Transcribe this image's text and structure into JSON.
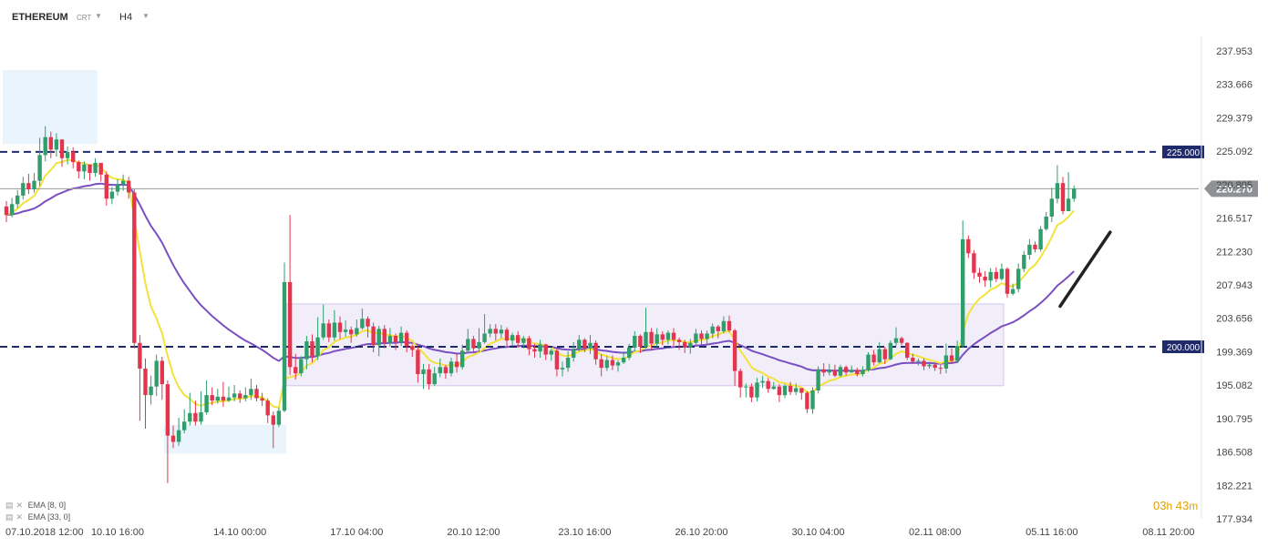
{
  "toolbar": {
    "symbol": "ETHEREUM",
    "instrument_type": "CRT",
    "timeframe": "H4"
  },
  "indicators": [
    {
      "label": "EMA",
      "params": "[8, 0]",
      "color": "#f2e23a"
    },
    {
      "label": "EMA",
      "params": "[33, 0]",
      "color": "#7a4fc2"
    }
  ],
  "countdown": {
    "hours": "03",
    "h_unit": "h",
    "minutes": "43",
    "m_unit": "m"
  },
  "colors": {
    "up_candle": "#2f9e6b",
    "down_candle": "#e3354e",
    "level_line": "#1f2a6b",
    "range_box": "#d8cff0",
    "zone_box": "#cfe7f8",
    "ema_fast": "#f2e23a",
    "ema_slow": "#7a4fc2",
    "trend_line": "#222222"
  },
  "chart_data": {
    "type": "candlestick",
    "title": "",
    "xlabel": "",
    "ylabel": "",
    "ylim": [
      177.934,
      239.5
    ],
    "y_ticks": [
      "237.953",
      "233.666",
      "229.379",
      "225.092",
      "220.805",
      "216.517",
      "212.230",
      "207.943",
      "203.656",
      "199.369",
      "195.082",
      "190.795",
      "186.508",
      "182.221",
      "177.934"
    ],
    "x_ticks": [
      "07.10.2018  12:00",
      "10.10  16:00",
      "14.10  00:00",
      "17.10  04:00",
      "20.10  12:00",
      "23.10  16:00",
      "26.10  20:00",
      "30.10  04:00",
      "02.11  08:00",
      "05.11  16:00",
      "08.11  20:00"
    ],
    "x_tick_positions": [
      0,
      20,
      42,
      63,
      84,
      104,
      125,
      146,
      167,
      188,
      209
    ],
    "n_slots": 209,
    "levels": [
      {
        "value": 225.0,
        "label": "225.000"
      },
      {
        "value": 200.0,
        "label": "200.000"
      }
    ],
    "current_price": {
      "value": 220.27,
      "label": "220.270"
    },
    "zones": [
      {
        "kind": "supply",
        "i1": 0,
        "i2": 17,
        "y1": 226.0,
        "y2": 235.5
      },
      {
        "kind": "demand",
        "i1": 29,
        "i2": 51,
        "y1": 190.0,
        "y2": 186.3
      },
      {
        "kind": "range",
        "i1": 51,
        "i2": 180,
        "y1": 205.5,
        "y2": 195.0
      }
    ],
    "trendline": {
      "i1": 189.5,
      "v1": 205.2,
      "i2": 198.5,
      "v2": 214.7
    },
    "candles": [
      [
        218.0,
        216.9,
        218.7,
        216.0
      ],
      [
        216.9,
        218.3,
        219.1,
        216.6
      ],
      [
        218.3,
        219.4,
        220.1,
        217.8
      ],
      [
        219.4,
        221.0,
        221.8,
        218.9
      ],
      [
        221.0,
        220.2,
        222.2,
        219.6
      ],
      [
        220.2,
        221.3,
        222.3,
        219.8
      ],
      [
        221.3,
        224.6,
        226.8,
        220.6
      ],
      [
        224.6,
        226.9,
        228.3,
        223.8
      ],
      [
        226.9,
        225.3,
        227.6,
        224.2
      ],
      [
        225.3,
        226.6,
        227.4,
        224.4
      ],
      [
        226.6,
        224.2,
        225.6,
        223.1
      ],
      [
        224.2,
        225.0,
        225.7,
        223.4
      ],
      [
        225.0,
        223.7,
        225.6,
        222.9
      ],
      [
        223.7,
        222.5,
        223.9,
        221.6
      ],
      [
        222.5,
        223.4,
        223.8,
        221.5
      ],
      [
        223.4,
        222.3,
        223.0,
        221.3
      ],
      [
        222.3,
        223.6,
        224.2,
        221.8
      ],
      [
        223.6,
        222.1,
        223.5,
        221.2
      ],
      [
        222.1,
        219.0,
        222.5,
        218.1
      ],
      [
        219.0,
        219.9,
        220.5,
        218.3
      ],
      [
        219.9,
        220.8,
        221.5,
        219.4
      ],
      [
        220.8,
        221.3,
        222.1,
        220.0
      ],
      [
        221.3,
        219.8,
        221.8,
        219.0
      ],
      [
        219.8,
        200.5,
        220.2,
        199.8
      ],
      [
        200.5,
        197.2,
        201.5,
        190.5
      ],
      [
        197.2,
        193.8,
        198.5,
        189.5
      ],
      [
        193.8,
        194.9,
        196.3,
        192.6
      ],
      [
        194.9,
        198.2,
        199.0,
        193.7
      ],
      [
        198.2,
        195.2,
        198.7,
        193.2
      ],
      [
        195.2,
        188.6,
        195.7,
        182.5
      ],
      [
        188.6,
        187.8,
        189.9,
        187.0
      ],
      [
        187.8,
        189.3,
        190.9,
        187.3
      ],
      [
        189.3,
        190.4,
        192.0,
        188.9
      ],
      [
        190.4,
        191.5,
        194.1,
        189.9
      ],
      [
        191.5,
        190.4,
        193.1,
        189.9
      ],
      [
        190.4,
        191.6,
        194.3,
        190.0
      ],
      [
        191.6,
        193.8,
        195.7,
        191.3
      ],
      [
        193.8,
        193.1,
        194.8,
        192.5
      ],
      [
        193.1,
        193.6,
        194.6,
        192.7
      ],
      [
        193.6,
        193.1,
        195.5,
        192.3
      ],
      [
        193.1,
        193.5,
        194.9,
        192.9
      ],
      [
        193.5,
        194.0,
        195.1,
        193.0
      ],
      [
        194.0,
        193.4,
        194.4,
        192.8
      ],
      [
        193.4,
        193.8,
        194.8,
        193.0
      ],
      [
        193.8,
        194.6,
        195.9,
        193.2
      ],
      [
        194.6,
        193.4,
        195.1,
        193.0
      ],
      [
        193.4,
        193.1,
        194.1,
        192.4
      ],
      [
        193.1,
        191.2,
        193.4,
        190.2
      ],
      [
        191.2,
        190.0,
        191.7,
        187.0
      ],
      [
        190.0,
        191.8,
        192.2,
        189.7
      ],
      [
        191.8,
        208.3,
        210.8,
        191.6
      ],
      [
        208.3,
        197.4,
        216.9,
        196.4
      ],
      [
        197.4,
        196.6,
        199.1,
        195.8
      ],
      [
        196.6,
        198.4,
        198.8,
        196.2
      ],
      [
        198.4,
        200.7,
        201.4,
        197.1
      ],
      [
        200.7,
        198.8,
        201.6,
        198.0
      ],
      [
        198.8,
        201.2,
        203.8,
        198.3
      ],
      [
        201.2,
        203.0,
        205.4,
        200.9
      ],
      [
        203.0,
        201.2,
        203.5,
        200.6
      ],
      [
        201.2,
        203.1,
        204.7,
        200.8
      ],
      [
        203.1,
        201.9,
        203.9,
        201.0
      ],
      [
        201.9,
        202.2,
        203.4,
        201.3
      ],
      [
        202.2,
        201.6,
        202.6,
        200.5
      ],
      [
        201.6,
        202.4,
        203.5,
        201.3
      ],
      [
        202.4,
        203.6,
        204.9,
        202.2
      ],
      [
        203.6,
        202.6,
        203.9,
        201.2
      ],
      [
        202.6,
        200.2,
        203.1,
        199.3
      ],
      [
        200.2,
        202.3,
        202.7,
        198.8
      ],
      [
        202.3,
        200.5,
        202.8,
        199.8
      ],
      [
        200.5,
        201.4,
        202.4,
        200.0
      ],
      [
        201.4,
        200.6,
        201.7,
        199.6
      ],
      [
        200.6,
        201.8,
        202.6,
        200.1
      ],
      [
        201.8,
        200.1,
        202.1,
        199.3
      ],
      [
        200.1,
        199.6,
        200.3,
        198.7
      ],
      [
        199.6,
        196.5,
        200.0,
        195.4
      ],
      [
        196.5,
        197.1,
        197.8,
        194.6
      ],
      [
        197.1,
        195.2,
        197.8,
        194.5
      ],
      [
        195.2,
        196.6,
        197.4,
        195.0
      ],
      [
        196.6,
        197.4,
        198.5,
        196.1
      ],
      [
        197.4,
        196.6,
        197.7,
        195.9
      ],
      [
        196.6,
        198.1,
        198.6,
        196.2
      ],
      [
        198.1,
        197.4,
        199.1,
        196.7
      ],
      [
        197.4,
        199.5,
        200.3,
        197.1
      ],
      [
        199.5,
        201.0,
        202.3,
        199.2
      ],
      [
        201.0,
        199.8,
        201.4,
        199.2
      ],
      [
        199.8,
        200.6,
        202.4,
        199.3
      ],
      [
        200.6,
        201.7,
        204.2,
        200.4
      ],
      [
        201.7,
        202.3,
        202.9,
        201.2
      ],
      [
        202.3,
        201.7,
        202.9,
        200.8
      ],
      [
        201.7,
        202.2,
        202.8,
        201.1
      ],
      [
        202.2,
        200.8,
        202.5,
        199.9
      ],
      [
        200.8,
        201.5,
        201.8,
        200.2
      ],
      [
        201.5,
        200.5,
        202.0,
        199.9
      ],
      [
        200.5,
        201.1,
        201.4,
        199.8
      ],
      [
        201.1,
        199.7,
        201.4,
        198.9
      ],
      [
        199.7,
        199.4,
        200.4,
        198.6
      ],
      [
        199.4,
        200.3,
        200.9,
        198.6
      ],
      [
        200.3,
        199.0,
        200.4,
        198.3
      ],
      [
        199.0,
        199.5,
        199.8,
        198.2
      ],
      [
        199.5,
        197.1,
        199.8,
        196.2
      ],
      [
        197.1,
        197.3,
        198.1,
        196.2
      ],
      [
        197.3,
        198.6,
        199.4,
        196.8
      ],
      [
        198.6,
        199.7,
        200.6,
        198.1
      ],
      [
        199.7,
        200.9,
        201.5,
        199.4
      ],
      [
        200.9,
        199.8,
        201.1,
        199.3
      ],
      [
        199.8,
        200.5,
        201.5,
        199.1
      ],
      [
        200.5,
        198.4,
        200.8,
        197.7
      ],
      [
        198.4,
        197.3,
        199.1,
        196.2
      ],
      [
        197.3,
        198.3,
        198.8,
        196.9
      ],
      [
        198.3,
        197.6,
        198.9,
        197.0
      ],
      [
        197.6,
        198.0,
        198.3,
        196.8
      ],
      [
        198.0,
        198.6,
        199.4,
        197.8
      ],
      [
        198.6,
        199.9,
        200.4,
        198.3
      ],
      [
        199.9,
        201.4,
        202.0,
        199.4
      ],
      [
        201.4,
        200.0,
        201.6,
        199.2
      ],
      [
        200.0,
        201.9,
        205.0,
        199.8
      ],
      [
        201.9,
        200.4,
        202.4,
        199.6
      ],
      [
        200.4,
        201.6,
        202.4,
        200.0
      ],
      [
        201.6,
        200.9,
        202.0,
        200.2
      ],
      [
        200.9,
        201.8,
        202.1,
        200.3
      ],
      [
        201.8,
        200.9,
        202.4,
        200.1
      ],
      [
        200.9,
        200.6,
        201.2,
        199.6
      ],
      [
        200.6,
        199.9,
        200.9,
        199.2
      ],
      [
        199.9,
        200.5,
        201.0,
        199.1
      ],
      [
        200.5,
        201.7,
        202.3,
        200.2
      ],
      [
        201.7,
        201.0,
        202.1,
        200.3
      ],
      [
        201.0,
        201.7,
        202.1,
        200.2
      ],
      [
        201.7,
        202.6,
        203.0,
        201.1
      ],
      [
        202.6,
        202.0,
        202.8,
        201.1
      ],
      [
        202.0,
        203.3,
        203.9,
        201.7
      ],
      [
        203.3,
        202.1,
        204.0,
        201.9
      ],
      [
        202.1,
        196.9,
        202.3,
        195.0
      ],
      [
        196.9,
        194.8,
        197.2,
        193.5
      ],
      [
        194.8,
        194.9,
        195.3,
        193.5
      ],
      [
        194.9,
        193.5,
        195.3,
        192.9
      ],
      [
        193.5,
        195.4,
        196.0,
        193.0
      ],
      [
        195.4,
        195.6,
        196.3,
        194.7
      ],
      [
        195.6,
        194.6,
        196.0,
        194.1
      ],
      [
        194.6,
        194.9,
        195.5,
        194.5
      ],
      [
        194.9,
        193.8,
        195.2,
        192.9
      ],
      [
        193.8,
        195.0,
        195.2,
        193.4
      ],
      [
        195.0,
        194.2,
        195.5,
        193.8
      ],
      [
        194.2,
        194.7,
        195.3,
        193.8
      ],
      [
        194.7,
        194.1,
        194.7,
        193.2
      ],
      [
        194.1,
        192.0,
        194.3,
        191.5
      ],
      [
        192.0,
        194.4,
        194.8,
        191.4
      ],
      [
        194.4,
        197.1,
        197.5,
        194.0
      ],
      [
        197.1,
        196.7,
        197.9,
        196.2
      ],
      [
        196.7,
        197.0,
        197.8,
        196.3
      ],
      [
        197.0,
        196.3,
        197.7,
        196.1
      ],
      [
        196.3,
        197.4,
        197.7,
        196.1
      ],
      [
        197.4,
        196.7,
        197.6,
        196.3
      ],
      [
        196.7,
        197.0,
        197.6,
        196.7
      ],
      [
        197.0,
        196.5,
        197.3,
        196.2
      ],
      [
        196.5,
        197.0,
        197.5,
        196.2
      ],
      [
        197.0,
        199.0,
        199.3,
        196.8
      ],
      [
        199.0,
        198.0,
        199.6,
        197.6
      ],
      [
        198.0,
        199.7,
        200.6,
        197.9
      ],
      [
        199.7,
        198.4,
        200.0,
        197.8
      ],
      [
        198.4,
        200.5,
        200.8,
        198.3
      ],
      [
        200.5,
        201.1,
        202.5,
        200.1
      ],
      [
        201.1,
        200.5,
        201.3,
        200.2
      ],
      [
        200.5,
        198.6,
        200.6,
        198.3
      ],
      [
        198.6,
        198.1,
        199.1,
        197.8
      ],
      [
        198.1,
        198.2,
        198.5,
        197.6
      ],
      [
        198.2,
        197.5,
        198.5,
        197.0
      ],
      [
        197.5,
        197.7,
        198.1,
        197.2
      ],
      [
        197.7,
        197.3,
        197.9,
        196.9
      ],
      [
        197.3,
        197.2,
        197.7,
        196.5
      ],
      [
        197.2,
        198.9,
        200.4,
        196.6
      ],
      [
        198.9,
        198.2,
        199.8,
        197.8
      ],
      [
        198.2,
        200.1,
        200.8,
        197.9
      ],
      [
        200.1,
        213.8,
        216.2,
        199.9
      ],
      [
        213.8,
        212.0,
        214.3,
        211.4
      ],
      [
        212.0,
        209.5,
        212.4,
        208.7
      ],
      [
        209.5,
        209.0,
        210.1,
        208.2
      ],
      [
        209.0,
        208.5,
        209.7,
        207.7
      ],
      [
        208.5,
        209.6,
        210.1,
        207.6
      ],
      [
        209.6,
        208.7,
        210.2,
        208.3
      ],
      [
        208.7,
        210.0,
        210.7,
        208.5
      ],
      [
        210.0,
        206.8,
        210.2,
        206.3
      ],
      [
        206.8,
        207.4,
        208.1,
        206.6
      ],
      [
        207.4,
        210.0,
        210.7,
        207.0
      ],
      [
        210.0,
        211.8,
        212.3,
        209.6
      ],
      [
        211.8,
        213.1,
        213.8,
        211.2
      ],
      [
        213.1,
        212.5,
        213.5,
        212.1
      ],
      [
        212.5,
        215.1,
        215.5,
        212.2
      ],
      [
        215.1,
        216.7,
        217.3,
        214.9
      ],
      [
        216.7,
        219.0,
        220.4,
        216.0
      ],
      [
        219.0,
        221.0,
        223.3,
        218.4
      ],
      [
        221.0,
        217.4,
        221.8,
        217.0
      ],
      [
        217.4,
        219.0,
        222.4,
        218.1
      ],
      [
        219.0,
        220.3,
        220.7,
        218.6
      ]
    ]
  }
}
